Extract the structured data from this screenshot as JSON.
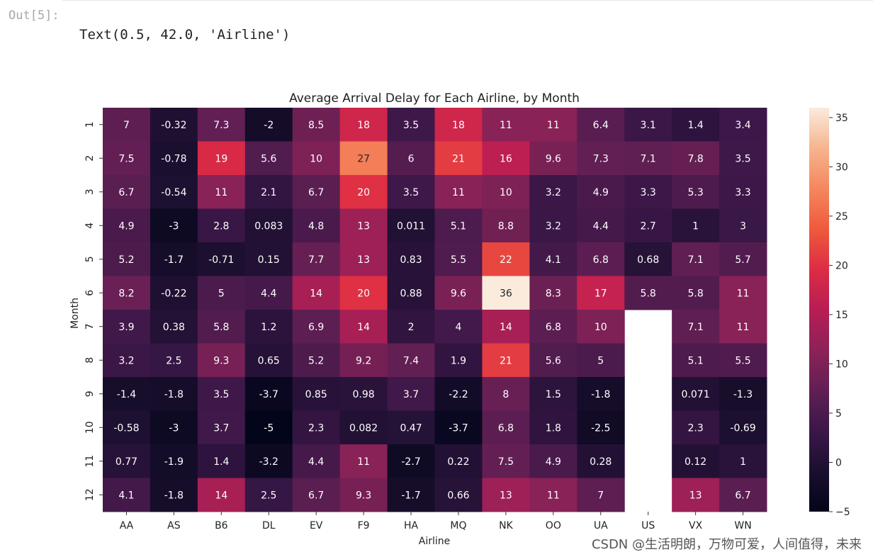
{
  "notebook": {
    "prompt": "Out[5]:",
    "output_text": "Text(0.5, 42.0, 'Airline')"
  },
  "watermark": "CSDN @生活明朗，万物可爱，人间值得，未来",
  "chart_data": {
    "type": "heatmap",
    "title": "Average Arrival Delay for Each Airline, by Month",
    "xlabel": "Airline",
    "ylabel": "Month",
    "columns": [
      "AA",
      "AS",
      "B6",
      "DL",
      "EV",
      "F9",
      "HA",
      "MQ",
      "NK",
      "OO",
      "UA",
      "US",
      "VX",
      "WN"
    ],
    "rows": [
      "1",
      "2",
      "3",
      "4",
      "5",
      "6",
      "7",
      "8",
      "9",
      "10",
      "11",
      "12"
    ],
    "values": [
      [
        7,
        -0.32,
        7.3,
        -2,
        8.5,
        18,
        3.5,
        18,
        11,
        11,
        6.4,
        3.1,
        1.4,
        3.4
      ],
      [
        7.5,
        -0.78,
        19,
        5.6,
        10,
        27,
        6,
        21,
        16,
        9.6,
        7.3,
        7.1,
        7.8,
        3.5
      ],
      [
        6.7,
        -0.54,
        11,
        2.1,
        6.7,
        20,
        3.5,
        11,
        10,
        3.2,
        4.9,
        3.3,
        5.3,
        3.3
      ],
      [
        4.9,
        -3,
        2.8,
        0.083,
        4.8,
        13,
        0.011,
        5.1,
        8.8,
        3.2,
        4.4,
        2.7,
        1,
        3
      ],
      [
        5.2,
        -1.7,
        -0.71,
        0.15,
        7.7,
        13,
        0.83,
        5.5,
        22,
        4.1,
        6.8,
        0.68,
        7.1,
        5.7
      ],
      [
        8.2,
        -0.22,
        5,
        4.4,
        14,
        20,
        0.88,
        9.6,
        36,
        8.3,
        17,
        5.8,
        5.8,
        11
      ],
      [
        3.9,
        0.38,
        5.8,
        1.2,
        6.9,
        14,
        2,
        4,
        14,
        6.8,
        10,
        null,
        7.1,
        11
      ],
      [
        3.2,
        2.5,
        9.3,
        0.65,
        5.2,
        9.2,
        7.4,
        1.9,
        21,
        5.6,
        5,
        null,
        5.1,
        5.5
      ],
      [
        -1.4,
        -1.8,
        3.5,
        -3.7,
        0.85,
        0.98,
        3.7,
        -2.2,
        8,
        1.5,
        -1.8,
        null,
        0.071,
        -1.3
      ],
      [
        -0.58,
        -3,
        3.7,
        -5,
        2.3,
        0.082,
        0.47,
        -3.7,
        6.8,
        1.8,
        -2.5,
        null,
        2.3,
        -0.69
      ],
      [
        0.77,
        -1.9,
        1.4,
        -3.2,
        4.4,
        11,
        -2.7,
        0.22,
        7.5,
        4.9,
        0.28,
        null,
        0.12,
        1
      ],
      [
        4.1,
        -1.8,
        14,
        2.5,
        6.7,
        9.3,
        -1.7,
        0.66,
        13,
        11,
        7,
        null,
        13,
        6.7
      ]
    ],
    "vmin": -5,
    "vmax": 36,
    "colorbar_ticks": [
      -5,
      0,
      5,
      10,
      15,
      20,
      25,
      30,
      35
    ],
    "colormap": "rocket",
    "colormap_stops": [
      "#03051a",
      "#1a0f2e",
      "#3b1748",
      "#611f53",
      "#8c2257",
      "#b81d54",
      "#dd2c45",
      "#ef5a3c",
      "#f4875e",
      "#f6b48e",
      "#faebdd"
    ]
  }
}
